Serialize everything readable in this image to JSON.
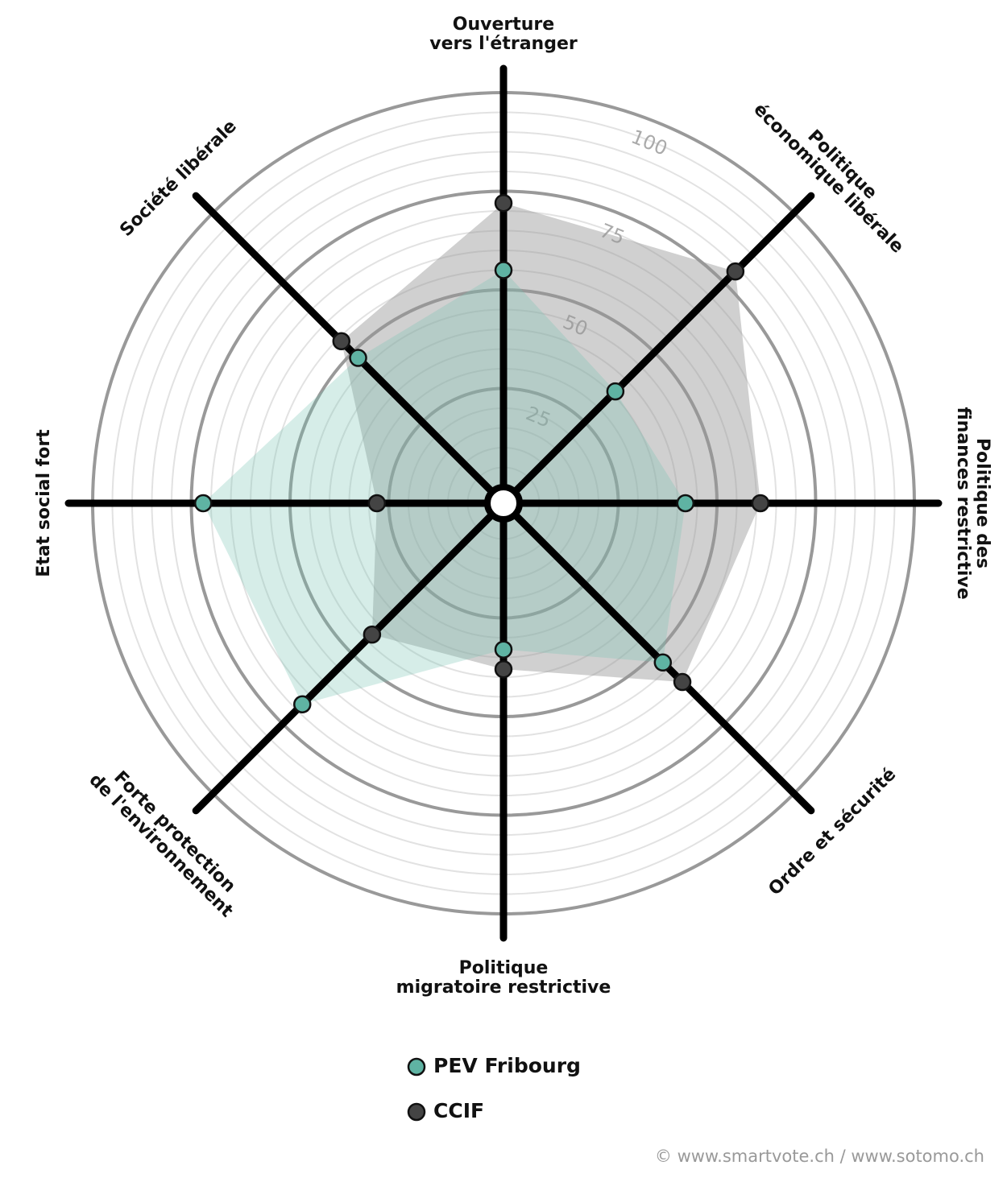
{
  "chart_data": {
    "type": "radar",
    "categories": [
      [
        "Ouverture",
        "vers l'étranger"
      ],
      [
        "Politique",
        "économique libérale"
      ],
      [
        "Politique des",
        "finances restrictive"
      ],
      [
        "Ordre et sécurité"
      ],
      [
        "Politique",
        "migratoire restrictive"
      ],
      [
        "Forte protection",
        "de l'environnement"
      ],
      [
        "Etat social fort"
      ],
      [
        "Société libérale"
      ]
    ],
    "series": [
      {
        "name": "PEV Fribourg",
        "color": "#5fb3a3",
        "values": [
          55,
          36,
          42,
          53,
          33,
          68,
          72,
          48
        ]
      },
      {
        "name": "CCIF",
        "color": "#444444",
        "values": [
          72,
          79,
          61,
          60,
          38,
          43,
          28,
          54
        ]
      }
    ],
    "rlim": [
      0,
      100
    ],
    "rticks": [
      25,
      50,
      75,
      100
    ],
    "source": "© www.smartvote.ch / www.sotomo.ch"
  }
}
